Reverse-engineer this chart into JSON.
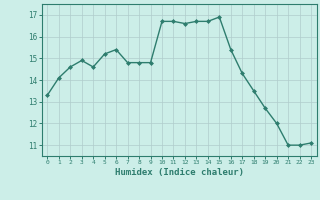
{
  "x": [
    0,
    1,
    2,
    3,
    4,
    5,
    6,
    7,
    8,
    9,
    10,
    11,
    12,
    13,
    14,
    15,
    16,
    17,
    18,
    19,
    20,
    21,
    22,
    23
  ],
  "y": [
    13.3,
    14.1,
    14.6,
    14.9,
    14.6,
    15.2,
    15.4,
    14.8,
    14.8,
    14.8,
    16.7,
    16.7,
    16.6,
    16.7,
    16.7,
    16.9,
    15.4,
    14.3,
    13.5,
    12.7,
    12.0,
    11.0,
    11.0,
    11.1
  ],
  "xlabel": "Humidex (Indice chaleur)",
  "ylim": [
    10.5,
    17.5
  ],
  "xlim": [
    -0.5,
    23.5
  ],
  "yticks": [
    11,
    12,
    13,
    14,
    15,
    16,
    17
  ],
  "xticks": [
    0,
    1,
    2,
    3,
    4,
    5,
    6,
    7,
    8,
    9,
    10,
    11,
    12,
    13,
    14,
    15,
    16,
    17,
    18,
    19,
    20,
    21,
    22,
    23
  ],
  "line_color": "#2e7d6e",
  "bg_color": "#cceee8",
  "grid_color": "#b0cccc",
  "marker": "D",
  "marker_size": 2,
  "line_width": 1.0
}
